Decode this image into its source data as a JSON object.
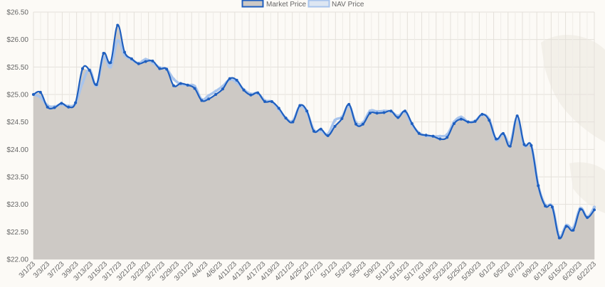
{
  "chart_data": {
    "type": "line",
    "title": "",
    "xlabel": "",
    "ylabel": "",
    "ylim": [
      22.0,
      26.5
    ],
    "y_ticks": [
      "$22.00",
      "$22.50",
      "$23.00",
      "$23.50",
      "$24.00",
      "$24.50",
      "$25.00",
      "$25.50",
      "$26.00",
      "$26.50"
    ],
    "y_tick_values": [
      22.0,
      22.5,
      23.0,
      23.5,
      24.0,
      24.5,
      25.0,
      25.5,
      26.0,
      26.5
    ],
    "x_tick_labels": [
      "3/1/23",
      "3/3/23",
      "3/7/23",
      "3/9/23",
      "3/13/23",
      "3/15/23",
      "3/17/23",
      "3/21/23",
      "3/23/23",
      "3/27/23",
      "3/29/23",
      "3/31/23",
      "4/4/23",
      "4/6/23",
      "4/11/23",
      "4/13/23",
      "4/17/23",
      "4/19/23",
      "4/21/23",
      "4/25/23",
      "4/27/23",
      "5/1/23",
      "5/3/23",
      "5/5/23",
      "5/9/23",
      "5/11/23",
      "5/15/23",
      "5/17/23",
      "5/19/23",
      "5/23/23",
      "5/25/23",
      "5/30/23",
      "6/1/23",
      "6/5/23",
      "6/7/23",
      "6/9/23",
      "6/13/23",
      "6/15/23",
      "6/20/23",
      "6/22/23"
    ],
    "legend_position": "top-center",
    "grid": true,
    "area_fill_color": "#cdc9c5",
    "series": [
      {
        "name": "Market Price",
        "color": "#1f5fbf",
        "style": "solid-bold",
        "values": [
          25.0,
          25.04,
          24.77,
          24.76,
          24.84,
          24.77,
          24.85,
          25.47,
          25.44,
          25.18,
          25.75,
          25.58,
          26.26,
          25.77,
          25.65,
          25.56,
          25.6,
          25.61,
          25.47,
          25.46,
          25.16,
          25.2,
          25.17,
          25.11,
          24.89,
          24.92,
          25.0,
          25.1,
          25.29,
          25.26,
          25.08,
          24.99,
          25.03,
          24.87,
          24.87,
          24.75,
          24.57,
          24.5,
          24.8,
          24.7,
          24.33,
          24.37,
          24.25,
          24.42,
          24.56,
          24.82,
          24.46,
          24.46,
          24.66,
          24.66,
          24.67,
          24.7,
          24.58,
          24.7,
          24.47,
          24.29,
          24.26,
          24.24,
          24.19,
          24.22,
          24.47,
          24.55,
          24.5,
          24.51,
          24.64,
          24.53,
          24.19,
          24.29,
          24.06,
          24.61,
          24.09,
          24.07,
          23.34,
          22.97,
          22.95,
          22.39,
          22.6,
          22.53,
          22.91,
          22.76,
          22.9
        ]
      },
      {
        "name": "NAV Price",
        "color": "#a8c4ec",
        "style": "light",
        "values": [
          25.0,
          24.95,
          24.8,
          24.78,
          24.82,
          24.79,
          24.84,
          25.21,
          25.45,
          25.16,
          25.68,
          25.5,
          25.98,
          25.72,
          25.64,
          25.57,
          25.64,
          25.58,
          25.49,
          25.46,
          25.28,
          25.19,
          25.17,
          25.15,
          24.91,
          24.98,
          25.06,
          25.15,
          25.27,
          25.22,
          25.09,
          25.01,
          25.02,
          24.89,
          24.87,
          24.73,
          24.57,
          24.52,
          24.78,
          24.68,
          24.35,
          24.34,
          24.28,
          24.53,
          24.59,
          24.79,
          24.49,
          24.49,
          24.7,
          24.69,
          24.7,
          24.69,
          24.61,
          24.68,
          24.45,
          24.3,
          24.25,
          24.24,
          24.24,
          24.27,
          24.5,
          24.59,
          24.5,
          24.52,
          24.63,
          24.55,
          24.17,
          24.28,
          24.12,
          24.57,
          24.08,
          24.07,
          23.35,
          22.99,
          22.96,
          22.42,
          22.62,
          22.57,
          22.93,
          22.77,
          22.95
        ]
      }
    ]
  }
}
